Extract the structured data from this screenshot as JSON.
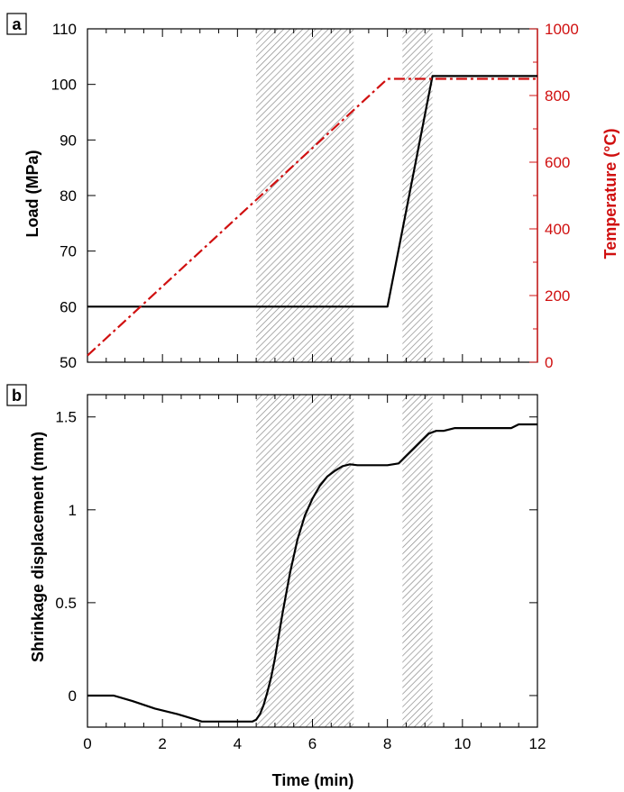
{
  "colors": {
    "load": "#000000",
    "temperature": "#d01010",
    "displacement": "#000000",
    "hatch": "#8a8a8a"
  },
  "chart_data": [
    {
      "type": "line",
      "panel_label": "a",
      "xlim": [
        0,
        12
      ],
      "x_ticks": [
        "",
        "",
        "",
        "",
        "",
        "",
        ""
      ],
      "ylabel": "Load (MPa)",
      "ylim": [
        50,
        110
      ],
      "y_ticks": [
        "50",
        "60",
        "70",
        "80",
        "90",
        "100",
        "110"
      ],
      "y2label": "Temperature (°C)",
      "y2lim": [
        0,
        1000
      ],
      "y2_ticks": [
        "0",
        "200",
        "400",
        "600",
        "800",
        "1000"
      ],
      "shaded_regions": [
        [
          4.5,
          7.1
        ],
        [
          8.4,
          9.2
        ]
      ],
      "series": [
        {
          "axis": "left",
          "style": "solid",
          "x": [
            0,
            8,
            9.2,
            12
          ],
          "y": [
            60,
            60,
            101.5,
            101.5
          ]
        },
        {
          "axis": "right",
          "style": "dash-dot",
          "x": [
            0,
            8,
            12
          ],
          "y": [
            20,
            850,
            850
          ]
        }
      ]
    },
    {
      "type": "line",
      "panel_label": "b",
      "xlabel": "Time (min)",
      "xlim": [
        0,
        12
      ],
      "x_ticks": [
        "0",
        "2",
        "4",
        "6",
        "8",
        "10",
        "12"
      ],
      "ylabel": "Shrinkage displacement (mm)",
      "ylim": [
        -0.17,
        1.62
      ],
      "y_ticks": [
        "0",
        "0.5",
        "1",
        "1.5"
      ],
      "shaded_regions": [
        [
          4.5,
          7.1
        ],
        [
          8.4,
          9.2
        ]
      ],
      "series": [
        {
          "axis": "left",
          "style": "solid",
          "x": [
            0,
            0.7,
            1.2,
            1.8,
            2.4,
            2.9,
            3.05,
            4.4,
            4.5,
            4.6,
            4.7,
            4.8,
            4.9,
            5.0,
            5.2,
            5.4,
            5.6,
            5.8,
            6.0,
            6.2,
            6.4,
            6.6,
            6.8,
            7.0,
            7.2,
            7.5,
            8.0,
            8.3,
            8.5,
            8.7,
            8.9,
            9.1,
            9.3,
            9.5,
            9.8,
            11.3,
            11.5,
            12
          ],
          "y": [
            0,
            0,
            -0.03,
            -0.07,
            -0.1,
            -0.13,
            -0.14,
            -0.14,
            -0.13,
            -0.1,
            -0.05,
            0.02,
            0.1,
            0.2,
            0.44,
            0.66,
            0.84,
            0.97,
            1.06,
            1.13,
            1.18,
            1.21,
            1.235,
            1.245,
            1.24,
            1.24,
            1.24,
            1.25,
            1.29,
            1.33,
            1.37,
            1.41,
            1.425,
            1.425,
            1.44,
            1.44,
            1.46,
            1.46
          ]
        }
      ]
    }
  ]
}
